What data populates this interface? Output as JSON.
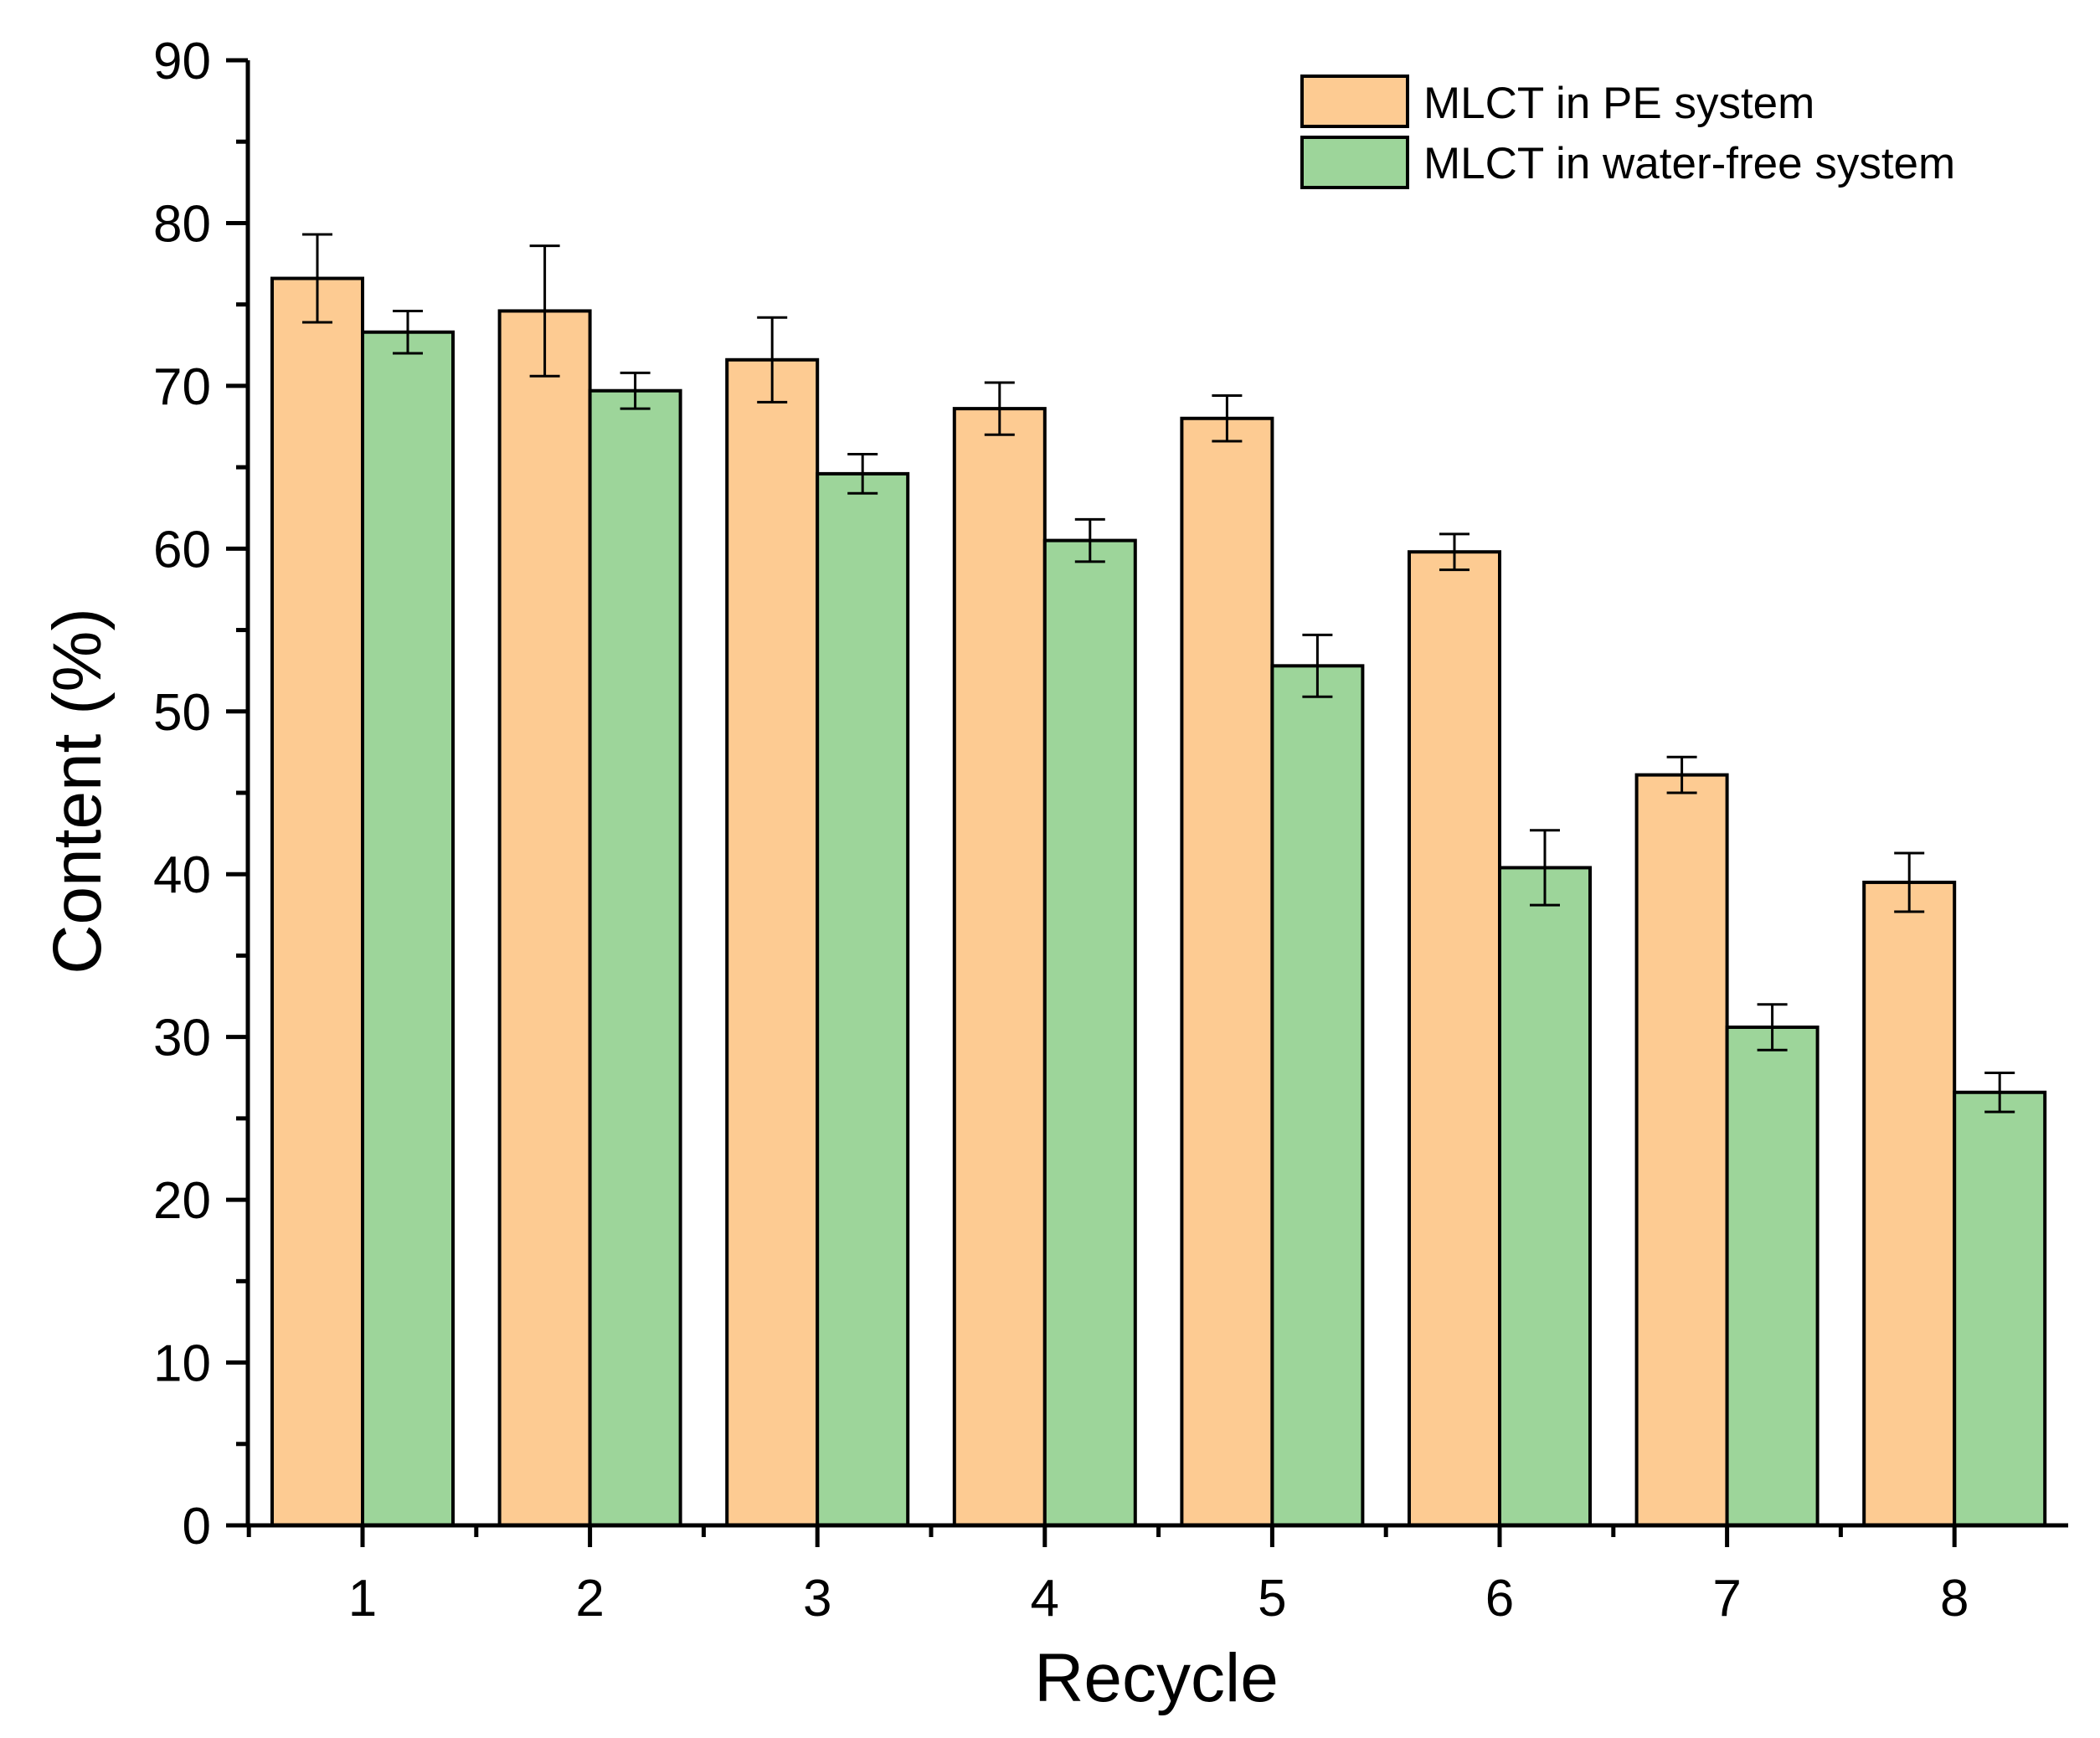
{
  "chart_data": {
    "type": "bar",
    "title": "",
    "xlabel": "Recycle",
    "ylabel": "Content (%)",
    "ylim": [
      0,
      90
    ],
    "yticks": [
      "0",
      "10",
      "20",
      "30",
      "40",
      "50",
      "60",
      "70",
      "80",
      "90"
    ],
    "categories": [
      "1",
      "2",
      "3",
      "4",
      "5",
      "6",
      "7",
      "8"
    ],
    "grid": false,
    "legend_position": "top-right",
    "series": [
      {
        "name": "MLCT in PE system",
        "color": "#FDCB92",
        "values": [
          76.6,
          74.6,
          71.6,
          68.6,
          68.0,
          59.8,
          46.1,
          39.5
        ],
        "errors": [
          2.7,
          4.0,
          2.6,
          1.6,
          1.4,
          1.1,
          1.1,
          1.8
        ]
      },
      {
        "name": "MLCT in water-free system",
        "color": "#9DD59A",
        "values": [
          73.3,
          69.7,
          64.6,
          60.5,
          52.8,
          40.4,
          30.6,
          26.6
        ],
        "errors": [
          1.3,
          1.1,
          1.2,
          1.3,
          1.9,
          2.3,
          1.4,
          1.2
        ]
      }
    ]
  }
}
